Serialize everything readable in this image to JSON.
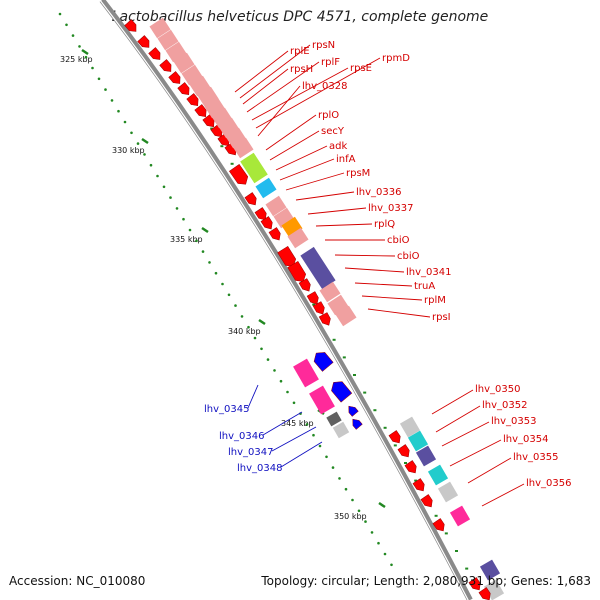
{
  "title": "Lactobacillus helveticus DPC 4571, complete genome",
  "footer": {
    "accession": "Accession: NC_010080",
    "summary": "Topology: circular; Length: 2,080,931 bp; Genes: 1,683"
  },
  "kbp_ticks": [
    "325 kbp",
    "330 kbp",
    "335 kbp",
    "340 kbp",
    "345 kbp",
    "350 kbp"
  ],
  "gene_labels_red_top": [
    "rplE",
    "rpsN",
    "rpsH",
    "rplF",
    "rpsE",
    "rpmD",
    "lhv_0328",
    "rplO",
    "secY",
    "adk",
    "infA",
    "rpsM",
    "lhv_0336",
    "lhv_0337",
    "rplQ",
    "cbiO",
    "cbiO",
    "lhv_0341",
    "truA",
    "rplM",
    "rpsI"
  ],
  "gene_labels_blue": [
    "lhv_0345",
    "lhv_0346",
    "lhv_0347",
    "lhv_0348"
  ],
  "gene_labels_red_bottom": [
    "lhv_0350",
    "lhv_0352",
    "lhv_0353",
    "lhv_0354",
    "lhv_0355",
    "lhv_0356"
  ],
  "colors": {
    "backbone": "#8a8a8a",
    "gene_red": "#ff0000",
    "gene_blue": "#0000ff",
    "cog_pink": "#f0a0a0",
    "cog_green": "#a8e83a",
    "cog_cyan": "#22bbee",
    "cog_orange": "#ff9900",
    "cog_purple": "#5a4fa0",
    "cog_magenta": "#ff2a9a",
    "cog_teal": "#22cccc",
    "cog_gray": "#c8c8c8",
    "tick_green": "#228822",
    "label_red": "#d40000",
    "label_blue": "#1010c0"
  }
}
